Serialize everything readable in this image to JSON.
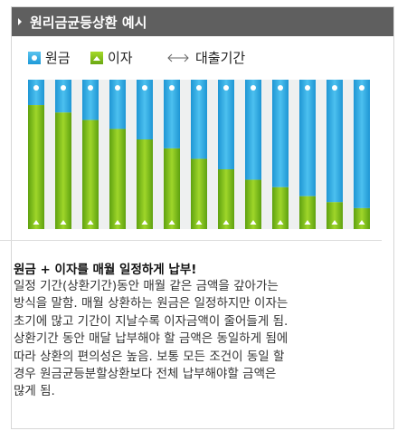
{
  "header": {
    "title": "원리금균등상환 예시"
  },
  "legend": {
    "principal": "원금",
    "interest": "이자",
    "period": "대출기간"
  },
  "colors": {
    "principal": "#2ba6e0",
    "interest": "#7ec322",
    "header_bg": "#5f5f5f"
  },
  "chart_data": {
    "type": "bar",
    "stacked": true,
    "normalized": true,
    "categories": [
      "",
      "",
      "",
      "",
      "",
      "",
      "",
      "",
      "",
      "",
      "",
      "",
      ""
    ],
    "series": [
      {
        "name": "원금",
        "values": [
          0.17,
          0.22,
          0.27,
          0.33,
          0.4,
          0.46,
          0.53,
          0.6,
          0.67,
          0.72,
          0.78,
          0.82,
          0.86
        ]
      },
      {
        "name": "이자",
        "values": [
          0.83,
          0.78,
          0.73,
          0.67,
          0.6,
          0.54,
          0.47,
          0.4,
          0.33,
          0.28,
          0.22,
          0.18,
          0.14
        ]
      }
    ]
  },
  "description": {
    "heading": "원금 + 이자를 매월 일정하게 납부!",
    "lines": [
      "일정 기간(상환기간)동안 매월 같은 금액을 갚아가는",
      "방식을 말함. 매월 상환하는 원금은 일정하지만 이자는",
      "초기에 많고 기간이 지날수록 이자금액이 줄어들게 됨.",
      "상환기간 동안 매달 납부해야 할 금액은 동일하게 됨에",
      "따라 상환의 편의성은 높음. 보통 모든 조건이 동일 할",
      "경우 원금균등분할상환보다 전체 납부해야할 금액은",
      "많게 됨."
    ]
  }
}
